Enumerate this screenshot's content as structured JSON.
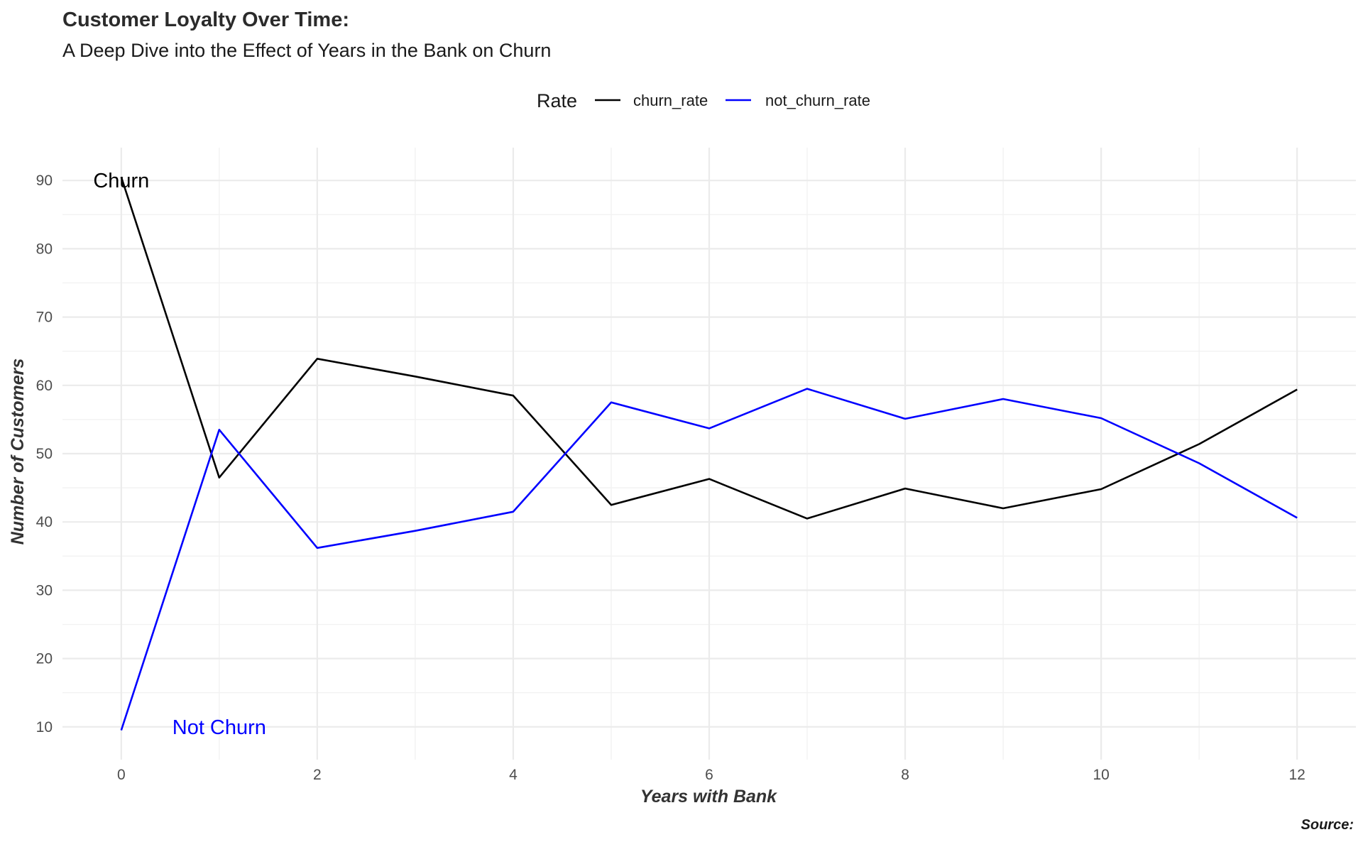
{
  "chart_data": {
    "type": "line",
    "title": "Customer Loyalty Over Time:",
    "subtitle": "A Deep Dive into the Effect of Years in the Bank on Churn",
    "xlabel": "Years with Bank",
    "ylabel": "Number of Customers",
    "caption": "Source:",
    "x": [
      0,
      1,
      2,
      3,
      4,
      5,
      6,
      7,
      8,
      9,
      10,
      11,
      12
    ],
    "xlim": [
      -0.6,
      12.6
    ],
    "ylim": [
      5.2,
      94.8
    ],
    "x_ticks": [
      0,
      2,
      4,
      6,
      8,
      10,
      12
    ],
    "y_ticks": [
      10,
      20,
      30,
      40,
      50,
      60,
      70,
      80,
      90
    ],
    "grid": true,
    "legend": {
      "title": "Rate",
      "position": "top"
    },
    "series": [
      {
        "name": "churn_rate",
        "color": "#000000",
        "values": [
          90.5,
          46.5,
          63.9,
          61.3,
          58.5,
          42.5,
          46.3,
          40.5,
          44.9,
          42.0,
          44.8,
          51.4,
          59.4
        ]
      },
      {
        "name": "not_churn_rate",
        "color": "#0000ff",
        "values": [
          9.5,
          53.5,
          36.2,
          38.7,
          41.5,
          57.5,
          53.7,
          59.5,
          55.1,
          58.0,
          55.2,
          48.6,
          40.6
        ]
      }
    ],
    "annotations": [
      {
        "text": "Churn",
        "x": 0,
        "y": 90,
        "color": "#000000"
      },
      {
        "text": "Not Churn",
        "x": 1,
        "y": 10,
        "color": "#0000ff"
      }
    ]
  }
}
